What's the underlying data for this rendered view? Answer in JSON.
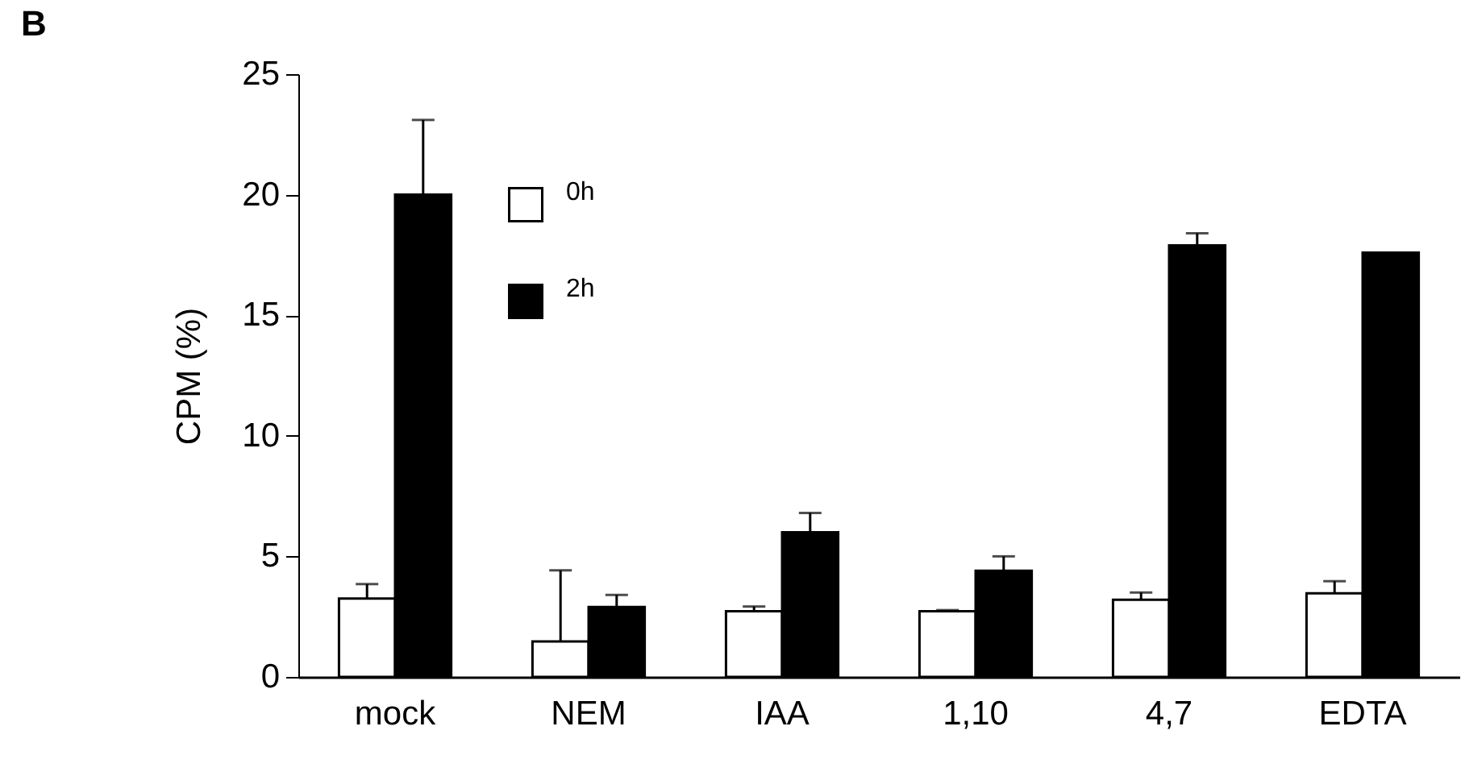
{
  "chart_data": {
    "type": "bar",
    "title": "B",
    "ylabel": "CPM (%)",
    "categories": [
      "mock",
      "NEM",
      "IAA",
      "1,10",
      "4,7",
      "EDTA"
    ],
    "series": [
      {
        "name": "0h",
        "color": "#ffffff",
        "values": [
          3.25,
          1.47,
          2.72,
          2.72,
          3.2,
          3.47
        ],
        "errors": [
          [
            3.25,
            3.85
          ],
          [
            1.47,
            4.42
          ],
          [
            2.72,
            2.92
          ],
          [
            2.72,
            2.77
          ],
          [
            3.2,
            3.5
          ],
          [
            3.47,
            3.97
          ]
        ]
      },
      {
        "name": "2h",
        "color": "#000000",
        "values": [
          20.0,
          2.9,
          6.0,
          4.4,
          17.9,
          17.6
        ],
        "errors": [
          [
            20.0,
            23.1
          ],
          [
            2.9,
            3.4
          ],
          [
            6.0,
            6.8
          ],
          [
            4.4,
            5.0
          ],
          [
            17.9,
            18.4
          ],
          null
        ]
      }
    ],
    "ylim": [
      0,
      25
    ],
    "yticks": [
      0,
      5,
      10,
      15,
      20,
      25
    ],
    "grid": false,
    "legend": "top left"
  }
}
